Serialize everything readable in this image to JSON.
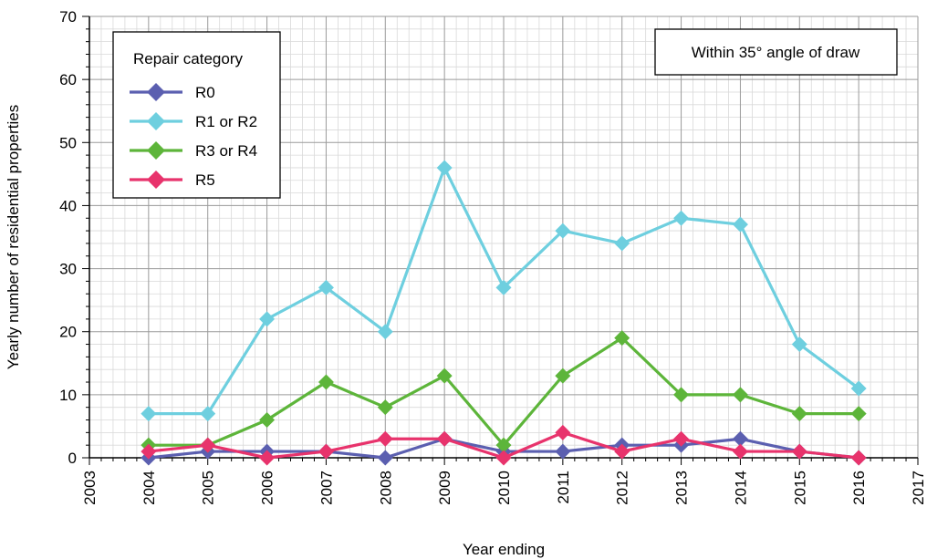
{
  "chart_data": {
    "type": "line",
    "title": "",
    "xlabel": "Year ending",
    "ylabel": "Yearly number of residential properties",
    "xlim": [
      2003,
      2017
    ],
    "ylim": [
      0,
      70
    ],
    "x_ticks": [
      "2003",
      "2004",
      "2005",
      "2006",
      "2007",
      "2008",
      "2009",
      "2010",
      "2011",
      "2012",
      "2013",
      "2014",
      "2015",
      "2016",
      "2017"
    ],
    "y_ticks": [
      "0",
      "10",
      "20",
      "30",
      "40",
      "50",
      "60",
      "70"
    ],
    "grid": true,
    "legend_title": "Repair category",
    "legend_position": "top-left",
    "annotation": "Within 35° angle of draw",
    "x": [
      2004,
      2005,
      2006,
      2007,
      2008,
      2009,
      2010,
      2011,
      2012,
      2013,
      2014,
      2015,
      2016
    ],
    "series": [
      {
        "name": "R0",
        "color": "#5b5fb0",
        "values": [
          0,
          1,
          1,
          1,
          0,
          3,
          1,
          1,
          2,
          2,
          3,
          1,
          0
        ]
      },
      {
        "name": "R1 or R2",
        "color": "#6ecfdf",
        "values": [
          7,
          7,
          22,
          27,
          20,
          46,
          27,
          36,
          34,
          38,
          37,
          18,
          11
        ]
      },
      {
        "name": "R3 or R4",
        "color": "#5db53a",
        "values": [
          2,
          2,
          6,
          12,
          8,
          13,
          2,
          13,
          19,
          10,
          10,
          7,
          7
        ]
      },
      {
        "name": "R5",
        "color": "#e8336c",
        "values": [
          1,
          2,
          0,
          1,
          3,
          3,
          0,
          4,
          1,
          3,
          1,
          1,
          0
        ]
      }
    ]
  }
}
